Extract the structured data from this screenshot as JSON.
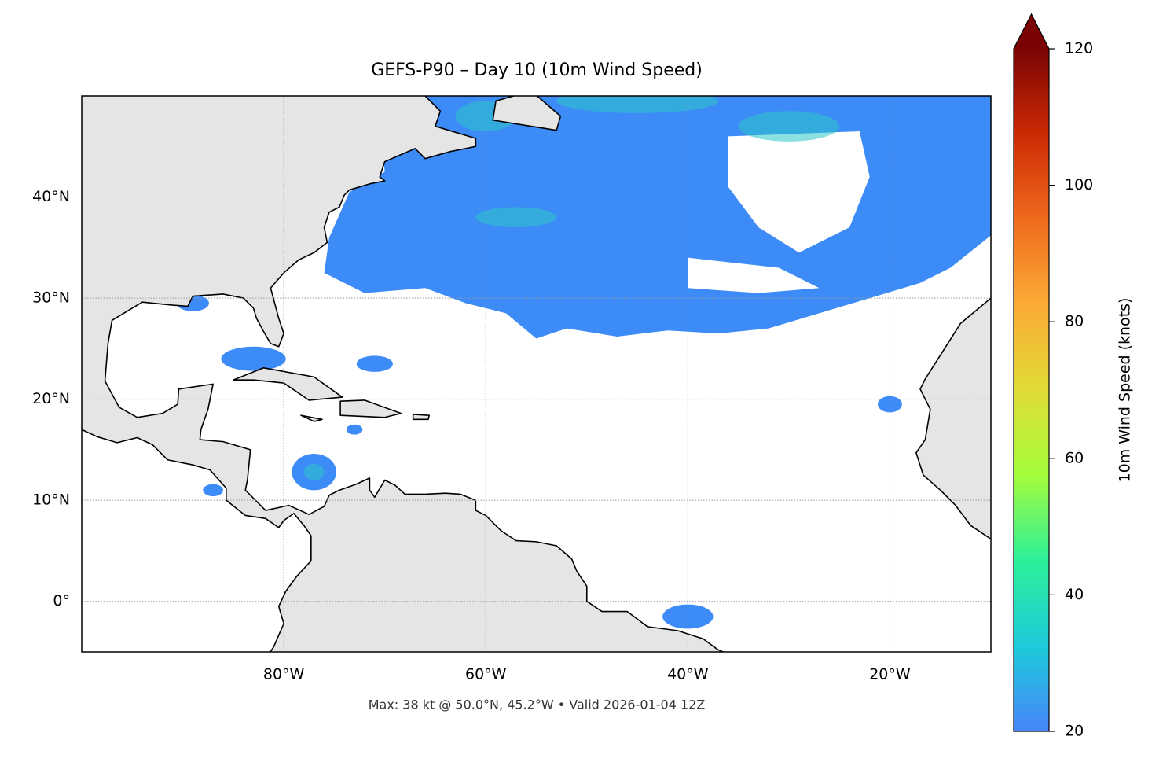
{
  "chart_data": {
    "type": "map",
    "title": "GEFS-P90 – Day 10 (10m Wind Speed)",
    "footnote": "Max: 38 kt @ 50.0°N, 45.2°W • Valid 2026-01-04 12Z",
    "xlim": [
      -100,
      -10
    ],
    "ylim": [
      -5,
      50
    ],
    "xticks": [
      {
        "value": -80,
        "label": "80°W"
      },
      {
        "value": -60,
        "label": "60°W"
      },
      {
        "value": -40,
        "label": "40°W"
      },
      {
        "value": -20,
        "label": "20°W"
      }
    ],
    "yticks": [
      {
        "value": 0,
        "label": "0°"
      },
      {
        "value": 10,
        "label": "10°N"
      },
      {
        "value": 20,
        "label": "20°N"
      },
      {
        "value": 30,
        "label": "30°N"
      },
      {
        "value": 40,
        "label": "40°N"
      }
    ],
    "grid": true,
    "colorbar": {
      "label": "10m Wind Speed (knots)",
      "lim": [
        20,
        120
      ],
      "ticks": [
        20,
        40,
        60,
        80,
        100,
        120
      ],
      "extend": "max",
      "colors": [
        "#4686fb",
        "#1ecbda",
        "#2cf09a",
        "#a4fc3c",
        "#e1dc37",
        "#fcab36",
        "#f06a1d",
        "#cb2a04",
        "#7a0403"
      ]
    }
  }
}
